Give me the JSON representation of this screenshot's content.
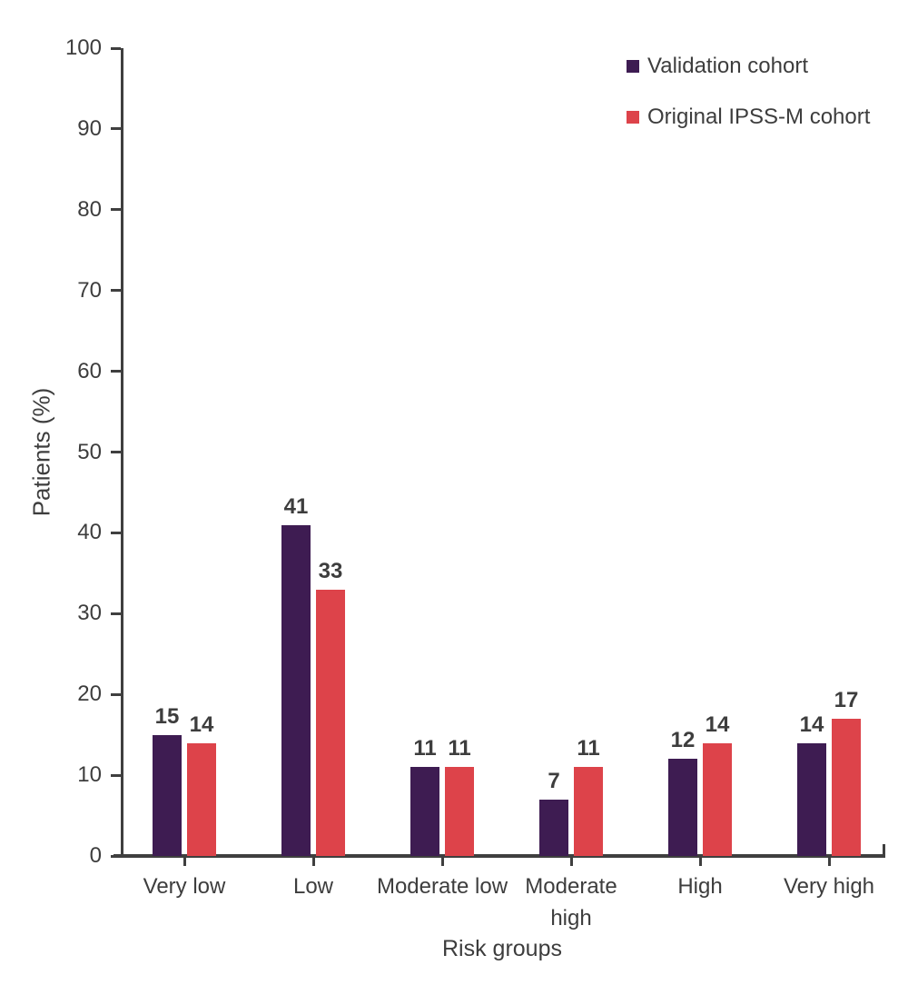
{
  "chart_data": {
    "type": "bar",
    "title": "",
    "categories": [
      "Very low",
      "Low",
      "Moderate low",
      "Moderate high",
      "High",
      "Very high"
    ],
    "series": [
      {
        "name": "Validation cohort",
        "color": "#3e1c52",
        "values": [
          15,
          41,
          11,
          7,
          12,
          14
        ]
      },
      {
        "name": "Original IPSS-M cohort",
        "color": "#dd434a",
        "values": [
          14,
          33,
          11,
          11,
          14,
          17
        ]
      }
    ],
    "xlabel": "Risk groups",
    "ylabel": "Patients (%)",
    "ylim": [
      0,
      100
    ],
    "yticks": [
      0,
      10,
      20,
      30,
      40,
      50,
      60,
      70,
      80,
      90,
      100
    ],
    "grid": false,
    "legend_position": "top-right",
    "bar_value_labels": true,
    "axis_color": "#3f3f3f",
    "text_color": "#3d3d3d",
    "background_color": "#ffffff"
  }
}
